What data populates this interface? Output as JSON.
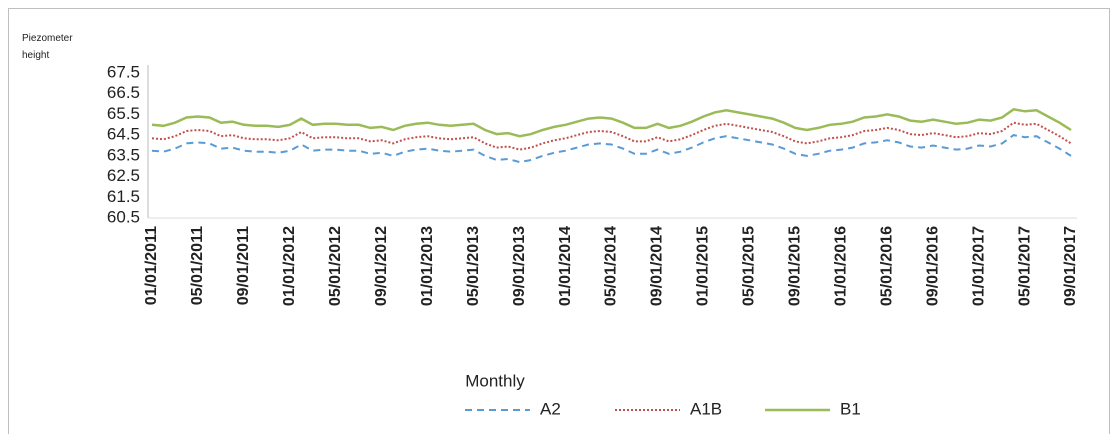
{
  "chart_data": {
    "type": "line",
    "y_label": "Piezometer height",
    "x_label": "Monthly",
    "categories": [
      "01/01/2011",
      null,
      null,
      null,
      "05/01/2011",
      null,
      null,
      null,
      "09/01/2011",
      null,
      null,
      null,
      "01/01/2012",
      null,
      null,
      null,
      "05/01/2012",
      null,
      null,
      null,
      "09/01/2012",
      null,
      null,
      null,
      "01/01/2013",
      null,
      null,
      null,
      "05/01/2013",
      null,
      null,
      null,
      "09/01/2013",
      null,
      null,
      null,
      "01/01/2014",
      null,
      null,
      null,
      "05/01/2014",
      null,
      null,
      null,
      "09/01/2014",
      null,
      null,
      null,
      "01/01/2015",
      null,
      null,
      null,
      "05/01/2015",
      null,
      null,
      null,
      "09/01/2015",
      null,
      null,
      null,
      "01/01/2016",
      null,
      null,
      null,
      "05/01/2016",
      null,
      null,
      null,
      "09/01/2016",
      null,
      null,
      null,
      "01/01/2017",
      null,
      null,
      null,
      "05/01/2017",
      null,
      null,
      null,
      "09/01/2017"
    ],
    "ylim": [
      60.5,
      67.5
    ],
    "yticks": [
      60.5,
      61.5,
      62.5,
      63.5,
      64.5,
      65.5,
      66.5,
      67.5
    ],
    "series": [
      {
        "name": "A2",
        "color": "#5b9bd5",
        "dash": "dashed",
        "values": [
          63.75,
          63.7,
          63.85,
          64.1,
          64.15,
          64.1,
          63.85,
          63.9,
          63.75,
          63.7,
          63.7,
          63.65,
          63.75,
          64.05,
          63.75,
          63.8,
          63.8,
          63.75,
          63.75,
          63.6,
          63.65,
          63.5,
          63.7,
          63.8,
          63.85,
          63.75,
          63.7,
          63.75,
          63.8,
          63.5,
          63.3,
          63.35,
          63.2,
          63.3,
          63.5,
          63.65,
          63.75,
          63.9,
          64.05,
          64.1,
          64.05,
          63.85,
          63.6,
          63.6,
          63.8,
          63.6,
          63.7,
          63.9,
          64.15,
          64.35,
          64.45,
          64.35,
          64.25,
          64.15,
          64.05,
          63.85,
          63.6,
          63.5,
          63.6,
          63.75,
          63.8,
          63.9,
          64.1,
          64.15,
          64.25,
          64.15,
          63.95,
          63.9,
          64.0,
          63.9,
          63.8,
          63.85,
          64.0,
          63.95,
          64.1,
          64.5,
          64.4,
          64.45,
          64.15,
          63.85,
          63.5
        ]
      },
      {
        "name": "A1B",
        "color": "#c0504d",
        "dash": "dotted",
        "values": [
          64.35,
          64.3,
          64.45,
          64.7,
          64.75,
          64.7,
          64.45,
          64.5,
          64.35,
          64.3,
          64.3,
          64.25,
          64.35,
          64.65,
          64.35,
          64.4,
          64.4,
          64.35,
          64.35,
          64.2,
          64.25,
          64.1,
          64.3,
          64.4,
          64.45,
          64.35,
          64.3,
          64.35,
          64.4,
          64.1,
          63.9,
          63.95,
          63.8,
          63.9,
          64.1,
          64.25,
          64.35,
          64.5,
          64.65,
          64.7,
          64.65,
          64.45,
          64.2,
          64.2,
          64.4,
          64.2,
          64.3,
          64.5,
          64.75,
          64.95,
          65.05,
          64.95,
          64.85,
          64.75,
          64.65,
          64.45,
          64.2,
          64.1,
          64.2,
          64.35,
          64.4,
          64.5,
          64.7,
          64.75,
          64.85,
          64.75,
          64.55,
          64.5,
          64.6,
          64.5,
          64.4,
          64.45,
          64.6,
          64.55,
          64.7,
          65.1,
          65.0,
          65.05,
          64.75,
          64.45,
          64.1
        ]
      },
      {
        "name": "B1",
        "color": "#9bbb59",
        "dash": "solid",
        "values": [
          65.0,
          64.95,
          65.1,
          65.35,
          65.4,
          65.35,
          65.1,
          65.15,
          65.0,
          64.95,
          64.95,
          64.9,
          65.0,
          65.3,
          65.0,
          65.05,
          65.05,
          65.0,
          65.0,
          64.85,
          64.9,
          64.75,
          64.95,
          65.05,
          65.1,
          65.0,
          64.95,
          65.0,
          65.05,
          64.75,
          64.55,
          64.6,
          64.45,
          64.55,
          64.75,
          64.9,
          65.0,
          65.15,
          65.3,
          65.35,
          65.3,
          65.1,
          64.85,
          64.85,
          65.05,
          64.85,
          64.95,
          65.15,
          65.4,
          65.6,
          65.7,
          65.6,
          65.5,
          65.4,
          65.3,
          65.1,
          64.85,
          64.75,
          64.85,
          65.0,
          65.05,
          65.15,
          65.35,
          65.4,
          65.5,
          65.4,
          65.2,
          65.15,
          65.25,
          65.15,
          65.05,
          65.1,
          65.25,
          65.2,
          65.35,
          65.75,
          65.65,
          65.7,
          65.4,
          65.1,
          64.75
        ]
      }
    ]
  }
}
